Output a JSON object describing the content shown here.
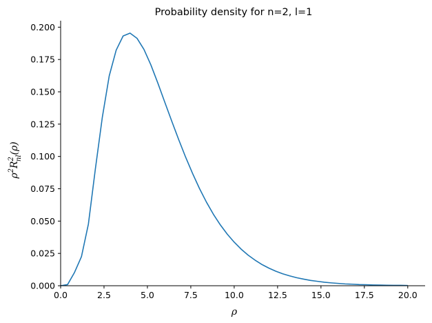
{
  "chart_data": {
    "type": "line",
    "title": "Probability density for n=2, l=1",
    "xlabel": "ρ",
    "ylabel_main": "ρ",
    "ylabel_sup1": "2",
    "ylabel_R": "R",
    "ylabel_sup2": "2",
    "ylabel_sub": "nl",
    "ylabel_tail": "(ρ)",
    "xlim": [
      0,
      21
    ],
    "ylim": [
      0,
      0.205
    ],
    "x_ticks": [
      0,
      2.5,
      5,
      7.5,
      10,
      12.5,
      15,
      17.5,
      20
    ],
    "x_tick_labels": [
      "0.0",
      "2.5",
      "5.0",
      "7.5",
      "10.0",
      "12.5",
      "15.0",
      "17.5",
      "20.0"
    ],
    "y_ticks": [
      0,
      0.025,
      0.05,
      0.075,
      0.1,
      0.125,
      0.15,
      0.175,
      0.2
    ],
    "y_tick_labels": [
      "0.000",
      "0.025",
      "0.050",
      "0.075",
      "0.100",
      "0.125",
      "0.150",
      "0.175",
      "0.200"
    ],
    "grid": false,
    "series": [
      {
        "color": "#1f77b4",
        "x": [
          0,
          0.4,
          0.8,
          1.2,
          1.6,
          2.0,
          2.4,
          2.8,
          3.2,
          3.6,
          4.0,
          4.4,
          4.8,
          5.2,
          5.6,
          6.0,
          6.4,
          6.8,
          7.2,
          7.6,
          8.0,
          8.4,
          8.8,
          9.2,
          9.6,
          10.0,
          10.4,
          10.8,
          11.2,
          11.6,
          12.0,
          12.4,
          12.8,
          13.2,
          13.6,
          14.0,
          14.4,
          14.8,
          15.2,
          15.6,
          16.0,
          16.4,
          16.8,
          17.2,
          17.6,
          18.0,
          18.4,
          18.8,
          19.2,
          19.6,
          20.0
        ],
        "y": [
          0,
          0.0009,
          0.0103,
          0.0225,
          0.0477,
          0.0902,
          0.1301,
          0.1623,
          0.1822,
          0.1932,
          0.1954,
          0.1914,
          0.1828,
          0.1708,
          0.1568,
          0.142,
          0.1274,
          0.1131,
          0.0995,
          0.0869,
          0.0752,
          0.0647,
          0.0553,
          0.0471,
          0.0399,
          0.0337,
          0.0283,
          0.0237,
          0.0198,
          0.0164,
          0.0136,
          0.0112,
          0.0092,
          0.0076,
          0.0062,
          0.0051,
          0.0041,
          0.0034,
          0.0027,
          0.0022,
          0.0018,
          0.0014,
          0.0012,
          0.0009,
          0.0008,
          0.0006,
          0.0005,
          0.0004,
          0.0003,
          0.0003,
          0.0002
        ]
      }
    ]
  }
}
